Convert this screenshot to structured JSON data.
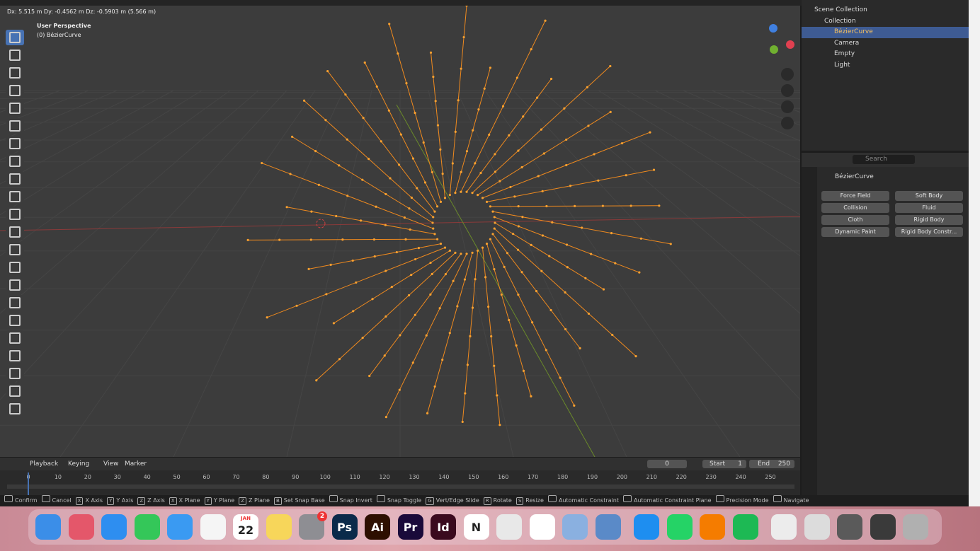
{
  "header": {
    "transform_info": "Dx: 5.515 m  Dy: -0.4562 m  Dz: -0.5903 m (5.566 m)"
  },
  "viewport": {
    "view_name": "User Perspective",
    "object_name": "(0) BézierCurve"
  },
  "outliner": {
    "items": [
      {
        "label": "Scene Collection",
        "level": 0
      },
      {
        "label": "Collection",
        "level": 1
      },
      {
        "label": "BézierCurve",
        "level": 2,
        "selected": true
      },
      {
        "label": "Camera",
        "level": 2
      },
      {
        "label": "Empty",
        "level": 2
      },
      {
        "label": "Light",
        "level": 2
      }
    ]
  },
  "properties": {
    "search_placeholder": "Search",
    "object_name": "BézierCurve",
    "buttons": [
      "Force Field",
      "Soft Body",
      "Collision",
      "Fluid",
      "Cloth",
      "Rigid Body",
      "Dynamic Paint",
      "Rigid Body Constr..."
    ]
  },
  "timeline": {
    "menus": [
      "Playback",
      "Keying",
      "View",
      "Marker"
    ],
    "current_frame": 0,
    "start_label": "Start",
    "start": 1,
    "end_label": "End",
    "end": 250,
    "ticks": [
      0,
      10,
      20,
      30,
      40,
      50,
      60,
      70,
      80,
      90,
      100,
      110,
      120,
      130,
      140,
      150,
      160,
      170,
      180,
      190,
      200,
      210,
      220,
      230,
      240,
      250
    ]
  },
  "status_bar": {
    "items": [
      {
        "label": "Confirm"
      },
      {
        "label": "Cancel"
      },
      {
        "key": "X",
        "label": "X Axis"
      },
      {
        "key": "Y",
        "label": "Y Axis"
      },
      {
        "key": "Z",
        "label": "Z Axis"
      },
      {
        "key": "X",
        "label": "X Plane"
      },
      {
        "key": "Y",
        "label": "Y Plane"
      },
      {
        "key": "Z",
        "label": "Z Plane"
      },
      {
        "key": "B",
        "label": "Set Snap Base"
      },
      {
        "label": "Snap Invert"
      },
      {
        "label": "Snap Toggle"
      },
      {
        "key": "G",
        "label": "Vert/Edge Slide"
      },
      {
        "key": "R",
        "label": "Rotate"
      },
      {
        "key": "S",
        "label": "Resize"
      },
      {
        "label": "Automatic Constraint"
      },
      {
        "label": "Automatic Constraint Plane"
      },
      {
        "label": "Precision Mode"
      },
      {
        "label": "Navigate"
      }
    ]
  },
  "dock": {
    "icons": [
      {
        "color": "#3b8ee8"
      },
      {
        "color": "#e4576a"
      },
      {
        "color": "#2e8ef0"
      },
      {
        "color": "#34c759"
      },
      {
        "color": "#3a9af2"
      },
      {
        "color": "#f5f5f5"
      },
      {
        "color": "#ffffff",
        "month": "JAN",
        "text": "22"
      },
      {
        "color": "#f7d65a"
      },
      {
        "color": "#8e8e93",
        "badge": "2"
      },
      {
        "color": "#0a2a4a",
        "text": "Ps"
      },
      {
        "color": "#2d0f00",
        "text": "Ai"
      },
      {
        "color": "#1a0a3a",
        "text": "Pr"
      },
      {
        "color": "#3a0a1e",
        "text": "Id"
      },
      {
        "color": "#ffffff",
        "text": "N"
      },
      {
        "color": "#e8e8e8"
      },
      {
        "color": "#ffffff"
      },
      {
        "color": "#8ab0e0"
      },
      {
        "color": "#5a8ac8"
      },
      {
        "color": "#1e8ef0"
      },
      {
        "color": "#25d366"
      },
      {
        "color": "#f57c00"
      },
      {
        "color": "#1db954"
      },
      {
        "color": "#ececec"
      },
      {
        "color": "#dcdcdc"
      },
      {
        "color": "#5a5a5a"
      },
      {
        "color": "#3a3a3a"
      },
      {
        "color": "#b0b0b0"
      }
    ]
  }
}
